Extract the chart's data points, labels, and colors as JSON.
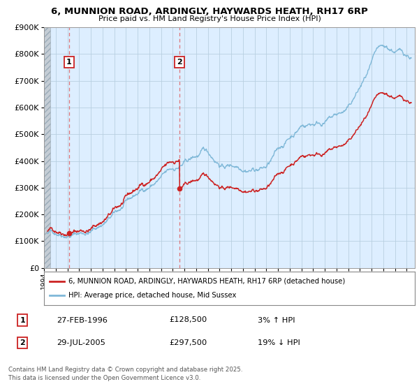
{
  "title_line1": "6, MUNNION ROAD, ARDINGLY, HAYWARDS HEATH, RH17 6RP",
  "title_line2": "Price paid vs. HM Land Registry's House Price Index (HPI)",
  "ylim": [
    0,
    900000
  ],
  "yticks": [
    0,
    100000,
    200000,
    300000,
    400000,
    500000,
    600000,
    700000,
    800000,
    900000
  ],
  "ytick_labels": [
    "£0",
    "£100K",
    "£200K",
    "£300K",
    "£400K",
    "£500K",
    "£600K",
    "£700K",
    "£800K",
    "£900K"
  ],
  "xmin": 1994.0,
  "xmax": 2025.7,
  "background_color": "#ffffff",
  "plot_bg_color": "#ddeeff",
  "grid_color": "#b8cfe0",
  "red_line_color": "#cc2222",
  "blue_line_color": "#7fb8d8",
  "marker_color": "#cc2222",
  "dashed_line_color": "#e06060",
  "legend_label_red": "6, MUNNION ROAD, ARDINGLY, HAYWARDS HEATH, RH17 6RP (detached house)",
  "legend_label_blue": "HPI: Average price, detached house, Mid Sussex",
  "transaction1_x": 1996.15,
  "transaction1_y": 128500,
  "transaction1_label": "1",
  "transaction1_date": "27-FEB-1996",
  "transaction1_price": "£128,500",
  "transaction1_hpi": "3% ↑ HPI",
  "transaction2_x": 2005.57,
  "transaction2_y": 297500,
  "transaction2_label": "2",
  "transaction2_date": "29-JUL-2005",
  "transaction2_price": "£297,500",
  "transaction2_hpi": "19% ↓ HPI",
  "footer_text": "Contains HM Land Registry data © Crown copyright and database right 2025.\nThis data is licensed under the Open Government Licence v3.0."
}
